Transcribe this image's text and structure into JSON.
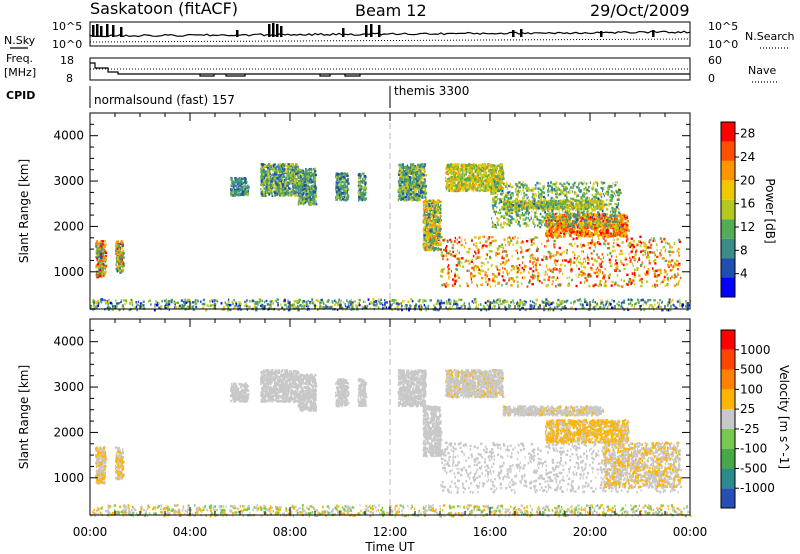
{
  "header": {
    "station": "Saskatoon (fitACF)",
    "beam": "Beam 12",
    "date": "29/Oct/2009"
  },
  "strip_labels": {
    "nsky": "N.Sky",
    "nsearch": "N.Search",
    "freq_line1": "Freq.",
    "freq_line2": "[MHz]",
    "nave": "Nave",
    "cpid": "CPID"
  },
  "strip_ticks": {
    "noise_top_left": "10^5",
    "noise_bottom_left": "10^0",
    "noise_top_right": "10^5",
    "noise_bottom_right": "10^0",
    "freq_top_left": "18",
    "freq_bottom_left": "8",
    "nave_top_right": "60",
    "nave_bottom_right": "0"
  },
  "cpid_segments": [
    {
      "label": "normalsound (fast) 157",
      "start_hour": 0
    },
    {
      "label": "themis 3300",
      "start_hour": 12
    }
  ],
  "chart_data": [
    {
      "type": "heatmap",
      "panel": "power",
      "ylabel": "Slant Range [km]",
      "xlabel": "Time UT",
      "xlim": [
        0,
        24
      ],
      "ylim": [
        180,
        4500
      ],
      "xtick_labels": [
        "00:00",
        "04:00",
        "08:00",
        "12:00",
        "16:00",
        "20:00",
        "00:00"
      ],
      "ytick_labels": [
        "1000",
        "2000",
        "3000",
        "4000"
      ],
      "colorbar": {
        "label": "Power [dB]",
        "ticks": [
          "4",
          "8",
          "12",
          "16",
          "20",
          "24",
          "28"
        ],
        "colors": [
          "#0000ff",
          "#1f4fb0",
          "#3c8c8c",
          "#55aa55",
          "#b4c81e",
          "#f0c800",
          "#ff9600",
          "#ff5000",
          "#ff0000"
        ],
        "range": [
          0,
          30
        ]
      },
      "patches": [
        {
          "t0": 0.0,
          "t1": 24.0,
          "r0": 180,
          "r1": 420,
          "v0": 2,
          "v1": 18
        },
        {
          "t0": 0.2,
          "t1": 0.6,
          "r0": 900,
          "r1": 1700,
          "v0": 5,
          "v1": 30
        },
        {
          "t0": 1.0,
          "t1": 1.3,
          "r0": 1000,
          "r1": 1700,
          "v0": 5,
          "v1": 30
        },
        {
          "t0": 5.6,
          "t1": 6.3,
          "r0": 2700,
          "r1": 3100,
          "v0": 4,
          "v1": 14
        },
        {
          "t0": 6.8,
          "t1": 8.3,
          "r0": 2700,
          "r1": 3400,
          "v0": 4,
          "v1": 18
        },
        {
          "t0": 8.3,
          "t1": 9.0,
          "r0": 2500,
          "r1": 3300,
          "v0": 4,
          "v1": 16
        },
        {
          "t0": 9.8,
          "t1": 10.3,
          "r0": 2600,
          "r1": 3200,
          "v0": 4,
          "v1": 16
        },
        {
          "t0": 10.7,
          "t1": 11.0,
          "r0": 2600,
          "r1": 3200,
          "v0": 4,
          "v1": 16
        },
        {
          "t0": 12.3,
          "t1": 13.4,
          "r0": 2600,
          "r1": 3400,
          "v0": 4,
          "v1": 18
        },
        {
          "t0": 13.3,
          "t1": 14.0,
          "r0": 1500,
          "r1": 2600,
          "v0": 6,
          "v1": 24
        },
        {
          "t0": 14.0,
          "t1": 23.6,
          "r0": 700,
          "r1": 1800,
          "v0": 12,
          "v1": 30
        },
        {
          "t0": 14.2,
          "t1": 16.5,
          "r0": 2800,
          "r1": 3400,
          "v0": 10,
          "v1": 22
        },
        {
          "t0": 16.5,
          "t1": 20.5,
          "r0": 2400,
          "r1": 2600,
          "v0": 10,
          "v1": 22
        },
        {
          "t0": 18.2,
          "t1": 21.5,
          "r0": 1800,
          "r1": 2300,
          "v0": 16,
          "v1": 30
        },
        {
          "t0": 16.0,
          "t1": 21.2,
          "r0": 2000,
          "r1": 3000,
          "v0": 6,
          "v1": 18
        }
      ]
    },
    {
      "type": "heatmap",
      "panel": "velocity",
      "ylabel": "Slant Range [km]",
      "xlabel": "Time UT",
      "xlim": [
        0,
        24
      ],
      "ylim": [
        180,
        4500
      ],
      "xtick_labels": [
        "00:00",
        "04:00",
        "08:00",
        "12:00",
        "16:00",
        "20:00",
        "00:00"
      ],
      "ytick_labels": [
        "1000",
        "2000",
        "3000",
        "4000"
      ],
      "colorbar": {
        "label": "Velocity [m s^-1]",
        "ticks": [
          "1000",
          "500",
          "100",
          "25",
          "-25",
          "-100",
          "-500",
          "-1000"
        ],
        "colors": [
          "#2850b4",
          "#2d8a8a",
          "#46a846",
          "#78c850",
          "#c8c8c8",
          "#ffb400",
          "#ff8200",
          "#ff4600",
          "#ff0000"
        ],
        "range": [
          -1200,
          1200
        ]
      },
      "patches": [
        {
          "t0": 0.0,
          "t1": 24.0,
          "r0": 180,
          "r1": 420,
          "v0": -300,
          "v1": 300
        },
        {
          "t0": 0.2,
          "t1": 0.6,
          "r0": 900,
          "r1": 1700,
          "v0": 40,
          "v1": 200
        },
        {
          "t0": 1.0,
          "t1": 1.3,
          "r0": 1000,
          "r1": 1700,
          "v0": 40,
          "v1": 200
        },
        {
          "t0": 5.6,
          "t1": 6.3,
          "r0": 2700,
          "r1": 3100,
          "v0": -20,
          "v1": 20
        },
        {
          "t0": 6.8,
          "t1": 8.3,
          "r0": 2700,
          "r1": 3400,
          "v0": -20,
          "v1": 20
        },
        {
          "t0": 8.3,
          "t1": 9.0,
          "r0": 2500,
          "r1": 3300,
          "v0": -20,
          "v1": 20
        },
        {
          "t0": 9.8,
          "t1": 10.3,
          "r0": 2600,
          "r1": 3200,
          "v0": -20,
          "v1": 20
        },
        {
          "t0": 10.7,
          "t1": 11.0,
          "r0": 2600,
          "r1": 3200,
          "v0": -20,
          "v1": 20
        },
        {
          "t0": 12.3,
          "t1": 13.4,
          "r0": 2600,
          "r1": 3400,
          "v0": -20,
          "v1": 60
        },
        {
          "t0": 13.3,
          "t1": 14.0,
          "r0": 1500,
          "r1": 2600,
          "v0": -20,
          "v1": 20
        },
        {
          "t0": 14.0,
          "t1": 23.6,
          "r0": 700,
          "r1": 1800,
          "v0": -20,
          "v1": 20
        },
        {
          "t0": 20.5,
          "t1": 23.6,
          "r0": 800,
          "r1": 1800,
          "v0": 30,
          "v1": 200
        },
        {
          "t0": 14.2,
          "t1": 16.5,
          "r0": 2800,
          "r1": 3400,
          "v0": 30,
          "v1": 150
        },
        {
          "t0": 16.5,
          "t1": 20.5,
          "r0": 2400,
          "r1": 2600,
          "v0": 30,
          "v1": 150
        },
        {
          "t0": 18.2,
          "t1": 21.5,
          "r0": 1800,
          "r1": 2300,
          "v0": 30,
          "v1": 400
        }
      ]
    }
  ]
}
